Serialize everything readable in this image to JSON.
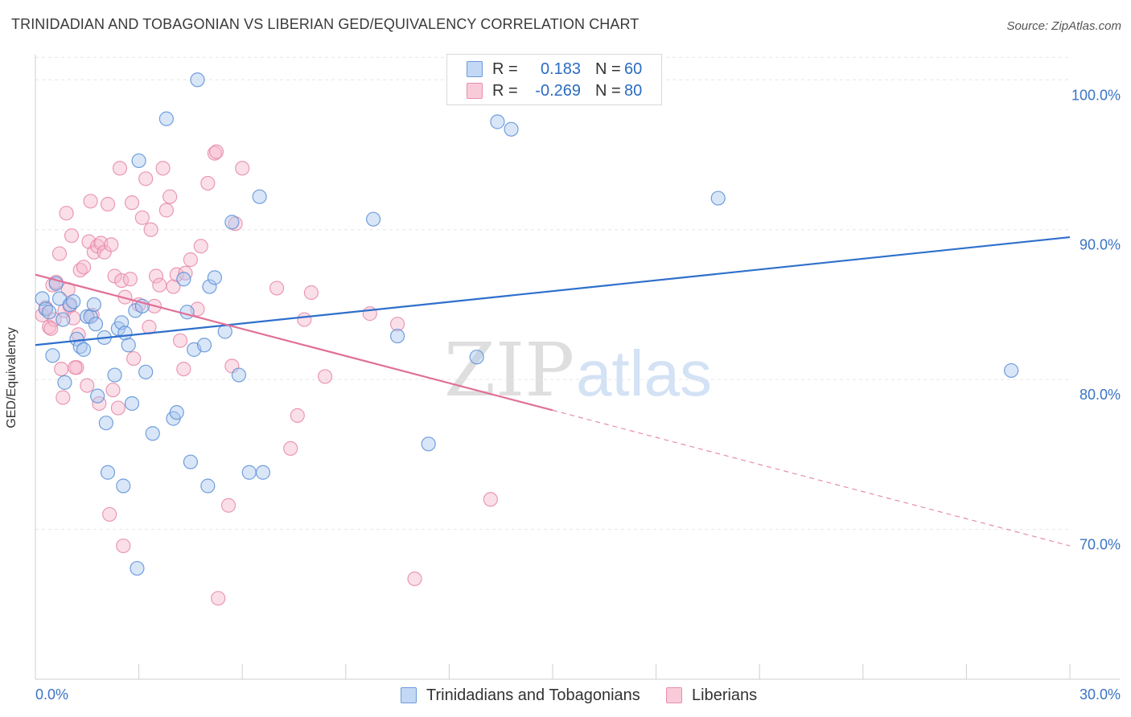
{
  "title": "TRINIDADIAN AND TOBAGONIAN VS LIBERIAN GED/EQUIVALENCY CORRELATION CHART",
  "source": "Source: ZipAtlas.com",
  "watermark": {
    "zip": "ZIP",
    "atlas": "atlas"
  },
  "colors": {
    "blue_fill": "#aac8f0",
    "blue_stroke": "#5b8fd6",
    "blue_line": "#2e6fcc",
    "pink_fill": "#f6b9cc",
    "pink_stroke": "#e58aa8",
    "pink_line": "#e07098",
    "tick_label": "#3a74c4",
    "grid": "#e6e6e6"
  },
  "legend": {
    "rows": [
      {
        "r_label": "R =",
        "r_value": "0.183",
        "n_label": "N =",
        "n_value": "60"
      },
      {
        "r_label": "R =",
        "r_value": "-0.269",
        "n_label": "N =",
        "n_value": "80"
      }
    ]
  },
  "chart_data": {
    "type": "scatter",
    "title": "TRINIDADIAN AND TOBAGONIAN VS LIBERIAN GED/EQUIVALENCY CORRELATION CHART",
    "xlabel": "",
    "ylabel": "GED/Equivalency",
    "xlim": [
      0,
      30
    ],
    "ylim": [
      60,
      102
    ],
    "x_tick_labels": [
      "0.0%",
      "30.0%"
    ],
    "y_ticks": [
      70,
      80,
      90,
      100
    ],
    "y_tick_labels": [
      "70.0%",
      "80.0%",
      "90.0%",
      "100.0%"
    ],
    "grid": true,
    "legend_position": "bottom",
    "series": [
      {
        "name": "Trinidadians and Tobagonians",
        "color": "#aac8f0",
        "trend": {
          "x": [
            0,
            30
          ],
          "y": [
            82.3,
            89.5
          ],
          "dashed_from": null
        },
        "points": [
          [
            0.2,
            85.4
          ],
          [
            0.3,
            84.7
          ],
          [
            0.4,
            84.5
          ],
          [
            0.5,
            81.6
          ],
          [
            0.6,
            86.4
          ],
          [
            0.7,
            85.4
          ],
          [
            0.8,
            84.0
          ],
          [
            0.85,
            79.8
          ],
          [
            1.0,
            85.0
          ],
          [
            1.1,
            85.2
          ],
          [
            1.2,
            82.7
          ],
          [
            1.3,
            82.2
          ],
          [
            1.4,
            82.0
          ],
          [
            1.5,
            84.2
          ],
          [
            1.6,
            84.2
          ],
          [
            1.7,
            85.0
          ],
          [
            1.75,
            83.7
          ],
          [
            1.8,
            78.9
          ],
          [
            2.0,
            82.8
          ],
          [
            2.05,
            77.1
          ],
          [
            2.1,
            73.8
          ],
          [
            2.3,
            80.3
          ],
          [
            2.4,
            83.4
          ],
          [
            2.5,
            83.8
          ],
          [
            2.55,
            72.9
          ],
          [
            2.6,
            83.1
          ],
          [
            2.7,
            82.3
          ],
          [
            2.8,
            78.4
          ],
          [
            2.9,
            84.6
          ],
          [
            2.95,
            67.4
          ],
          [
            3.0,
            94.6
          ],
          [
            3.1,
            84.9
          ],
          [
            3.2,
            80.5
          ],
          [
            3.4,
            76.4
          ],
          [
            3.8,
            97.4
          ],
          [
            4.0,
            77.4
          ],
          [
            4.1,
            77.8
          ],
          [
            4.3,
            86.7
          ],
          [
            4.4,
            84.5
          ],
          [
            4.5,
            74.5
          ],
          [
            4.6,
            82.0
          ],
          [
            4.7,
            100.0
          ],
          [
            4.9,
            82.3
          ],
          [
            5.0,
            72.9
          ],
          [
            5.05,
            86.2
          ],
          [
            5.2,
            86.8
          ],
          [
            5.5,
            83.2
          ],
          [
            5.7,
            90.5
          ],
          [
            5.9,
            80.3
          ],
          [
            6.2,
            73.8
          ],
          [
            6.5,
            92.2
          ],
          [
            6.6,
            73.8
          ],
          [
            9.8,
            90.7
          ],
          [
            10.5,
            82.9
          ],
          [
            11.4,
            75.7
          ],
          [
            12.8,
            81.5
          ],
          [
            13.4,
            97.2
          ],
          [
            13.8,
            96.7
          ],
          [
            19.8,
            92.1
          ],
          [
            28.3,
            80.6
          ]
        ]
      },
      {
        "name": "Liberians",
        "color": "#f6b9cc",
        "trend": {
          "x": [
            0,
            30
          ],
          "y": [
            87.0,
            68.9
          ],
          "dashed_from": 15.0
        },
        "points": [
          [
            0.2,
            84.3
          ],
          [
            0.3,
            84.8
          ],
          [
            0.4,
            83.5
          ],
          [
            0.5,
            86.3
          ],
          [
            0.55,
            84.0
          ],
          [
            0.6,
            86.5
          ],
          [
            0.7,
            88.4
          ],
          [
            0.75,
            80.7
          ],
          [
            0.8,
            78.8
          ],
          [
            0.85,
            84.6
          ],
          [
            0.9,
            91.1
          ],
          [
            1.0,
            84.9
          ],
          [
            1.05,
            89.6
          ],
          [
            1.1,
            84.1
          ],
          [
            1.2,
            80.8
          ],
          [
            1.25,
            83.0
          ],
          [
            1.3,
            87.3
          ],
          [
            1.4,
            87.5
          ],
          [
            1.5,
            79.6
          ],
          [
            1.55,
            89.2
          ],
          [
            1.6,
            91.9
          ],
          [
            1.7,
            88.5
          ],
          [
            1.8,
            88.9
          ],
          [
            1.85,
            78.4
          ],
          [
            1.9,
            89.1
          ],
          [
            2.0,
            88.5
          ],
          [
            2.1,
            91.7
          ],
          [
            2.15,
            71.0
          ],
          [
            2.2,
            89.0
          ],
          [
            2.3,
            86.9
          ],
          [
            2.4,
            78.1
          ],
          [
            2.45,
            94.1
          ],
          [
            2.5,
            86.6
          ],
          [
            2.55,
            68.9
          ],
          [
            2.6,
            85.5
          ],
          [
            2.8,
            91.8
          ],
          [
            2.85,
            81.4
          ],
          [
            3.0,
            85.0
          ],
          [
            3.1,
            90.8
          ],
          [
            3.2,
            93.4
          ],
          [
            3.3,
            83.5
          ],
          [
            3.35,
            90.0
          ],
          [
            3.5,
            86.9
          ],
          [
            3.6,
            86.3
          ],
          [
            3.7,
            94.1
          ],
          [
            3.8,
            91.3
          ],
          [
            3.9,
            92.2
          ],
          [
            4.0,
            86.2
          ],
          [
            4.1,
            87.0
          ],
          [
            4.2,
            82.6
          ],
          [
            4.3,
            80.7
          ],
          [
            4.5,
            88.0
          ],
          [
            4.7,
            84.7
          ],
          [
            4.8,
            88.9
          ],
          [
            5.0,
            93.1
          ],
          [
            5.2,
            95.1
          ],
          [
            5.3,
            65.4
          ],
          [
            5.6,
            71.6
          ],
          [
            5.7,
            80.9
          ],
          [
            5.8,
            90.4
          ],
          [
            6.0,
            94.1
          ],
          [
            7.0,
            86.1
          ],
          [
            7.4,
            75.4
          ],
          [
            7.6,
            77.6
          ],
          [
            7.8,
            84.0
          ],
          [
            8.0,
            85.8
          ],
          [
            8.4,
            80.2
          ],
          [
            9.7,
            84.4
          ],
          [
            10.5,
            83.7
          ],
          [
            11.0,
            66.7
          ],
          [
            13.2,
            72.0
          ],
          [
            1.65,
            84.3
          ],
          [
            2.75,
            86.7
          ],
          [
            4.35,
            87.1
          ],
          [
            5.25,
            95.2
          ],
          [
            0.45,
            83.4
          ],
          [
            1.15,
            80.8
          ],
          [
            2.25,
            79.3
          ],
          [
            3.45,
            84.9
          ],
          [
            0.95,
            86.0
          ]
        ]
      }
    ]
  }
}
